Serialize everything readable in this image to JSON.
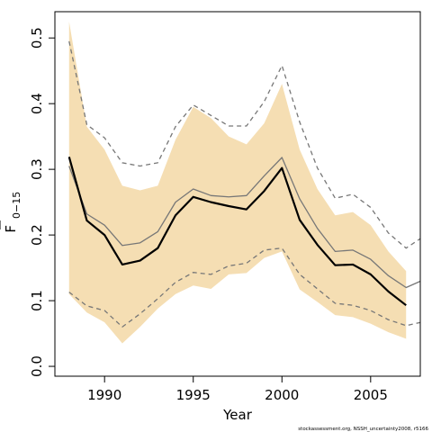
{
  "chart_data": {
    "type": "line",
    "xlabel": "Year",
    "ylabel": {
      "main": "F",
      "subscript": "0−15"
    },
    "footnote": "stockassessment.org, NSSH_uncertainty2008, r5166",
    "xlim": [
      1987.2,
      2007.8
    ],
    "ylim": [
      -0.015,
      0.54
    ],
    "x_ticks": [
      1990,
      1995,
      2000,
      2005
    ],
    "y_ticks": [
      0.0,
      0.1,
      0.2,
      0.3,
      0.4,
      0.5
    ],
    "y_tick_labels": [
      "0.0",
      "0.1",
      "0.2",
      "0.3",
      "0.4",
      "0.5"
    ],
    "x": [
      1988,
      1989,
      1990,
      1991,
      1992,
      1993,
      1994,
      1995,
      1996,
      1997,
      1998,
      1999,
      2000,
      2001,
      2002,
      2003,
      2004,
      2005,
      2006,
      2007,
      2008
    ],
    "band": {
      "color": "#f5deb3",
      "x": [
        1988,
        1989,
        1990,
        1991,
        1992,
        1993,
        1994,
        1995,
        1996,
        1997,
        1998,
        1999,
        2000,
        2001,
        2002,
        2003,
        2004,
        2005,
        2006,
        2007
      ],
      "upper": [
        0.525,
        0.365,
        0.33,
        0.275,
        0.268,
        0.275,
        0.345,
        0.395,
        0.378,
        0.35,
        0.338,
        0.37,
        0.43,
        0.33,
        0.27,
        0.23,
        0.235,
        0.215,
        0.175,
        0.145
      ],
      "lower": [
        0.11,
        0.082,
        0.067,
        0.035,
        0.06,
        0.088,
        0.11,
        0.123,
        0.118,
        0.14,
        0.142,
        0.165,
        0.175,
        0.117,
        0.098,
        0.078,
        0.075,
        0.065,
        0.052,
        0.042
      ]
    },
    "series": [
      {
        "style": "grey-solid",
        "color": "#777777",
        "x": [
          1988,
          1989,
          1990,
          1991,
          1992,
          1993,
          1994,
          1995,
          1996,
          1997,
          1998,
          1999,
          2000,
          2001,
          2002,
          2003,
          2004,
          2005,
          2006,
          2007,
          2008
        ],
        "values": [
          0.305,
          0.232,
          0.215,
          0.184,
          0.188,
          0.205,
          0.25,
          0.27,
          0.26,
          0.258,
          0.26,
          0.29,
          0.318,
          0.255,
          0.21,
          0.175,
          0.177,
          0.163,
          0.138,
          0.12,
          0.132
        ]
      },
      {
        "style": "black-thick",
        "color": "#000000",
        "x": [
          1988,
          1989,
          1990,
          1991,
          1992,
          1993,
          1994,
          1995,
          1996,
          1997,
          1998,
          1999,
          2000,
          2001,
          2002,
          2003,
          2004,
          2005,
          2006,
          2007
        ],
        "values": [
          0.319,
          0.222,
          0.2,
          0.155,
          0.161,
          0.18,
          0.23,
          0.258,
          0.25,
          0.244,
          0.239,
          0.267,
          0.302,
          0.223,
          0.185,
          0.154,
          0.155,
          0.14,
          0.114,
          0.093
        ]
      },
      {
        "style": "grey-dashed-upper",
        "color": "#777777",
        "x": [
          1988,
          1989,
          1990,
          1991,
          1992,
          1993,
          1994,
          1995,
          1996,
          1997,
          1998,
          1999,
          2000,
          2001,
          2002,
          2003,
          2004,
          2005,
          2006,
          2007,
          2008
        ],
        "values": [
          0.495,
          0.368,
          0.348,
          0.31,
          0.305,
          0.31,
          0.365,
          0.398,
          0.382,
          0.366,
          0.366,
          0.403,
          0.458,
          0.372,
          0.302,
          0.256,
          0.262,
          0.242,
          0.203,
          0.18,
          0.198
        ]
      },
      {
        "style": "grey-dashed-lower",
        "color": "#777777",
        "x": [
          1988,
          1989,
          1990,
          1991,
          1992,
          1993,
          1994,
          1995,
          1996,
          1997,
          1998,
          1999,
          2000,
          2001,
          2002,
          2003,
          2004,
          2005,
          2006,
          2007,
          2008
        ],
        "values": [
          0.113,
          0.092,
          0.085,
          0.06,
          0.08,
          0.103,
          0.128,
          0.143,
          0.14,
          0.153,
          0.157,
          0.177,
          0.18,
          0.14,
          0.118,
          0.096,
          0.093,
          0.085,
          0.071,
          0.062,
          0.068
        ]
      }
    ]
  }
}
